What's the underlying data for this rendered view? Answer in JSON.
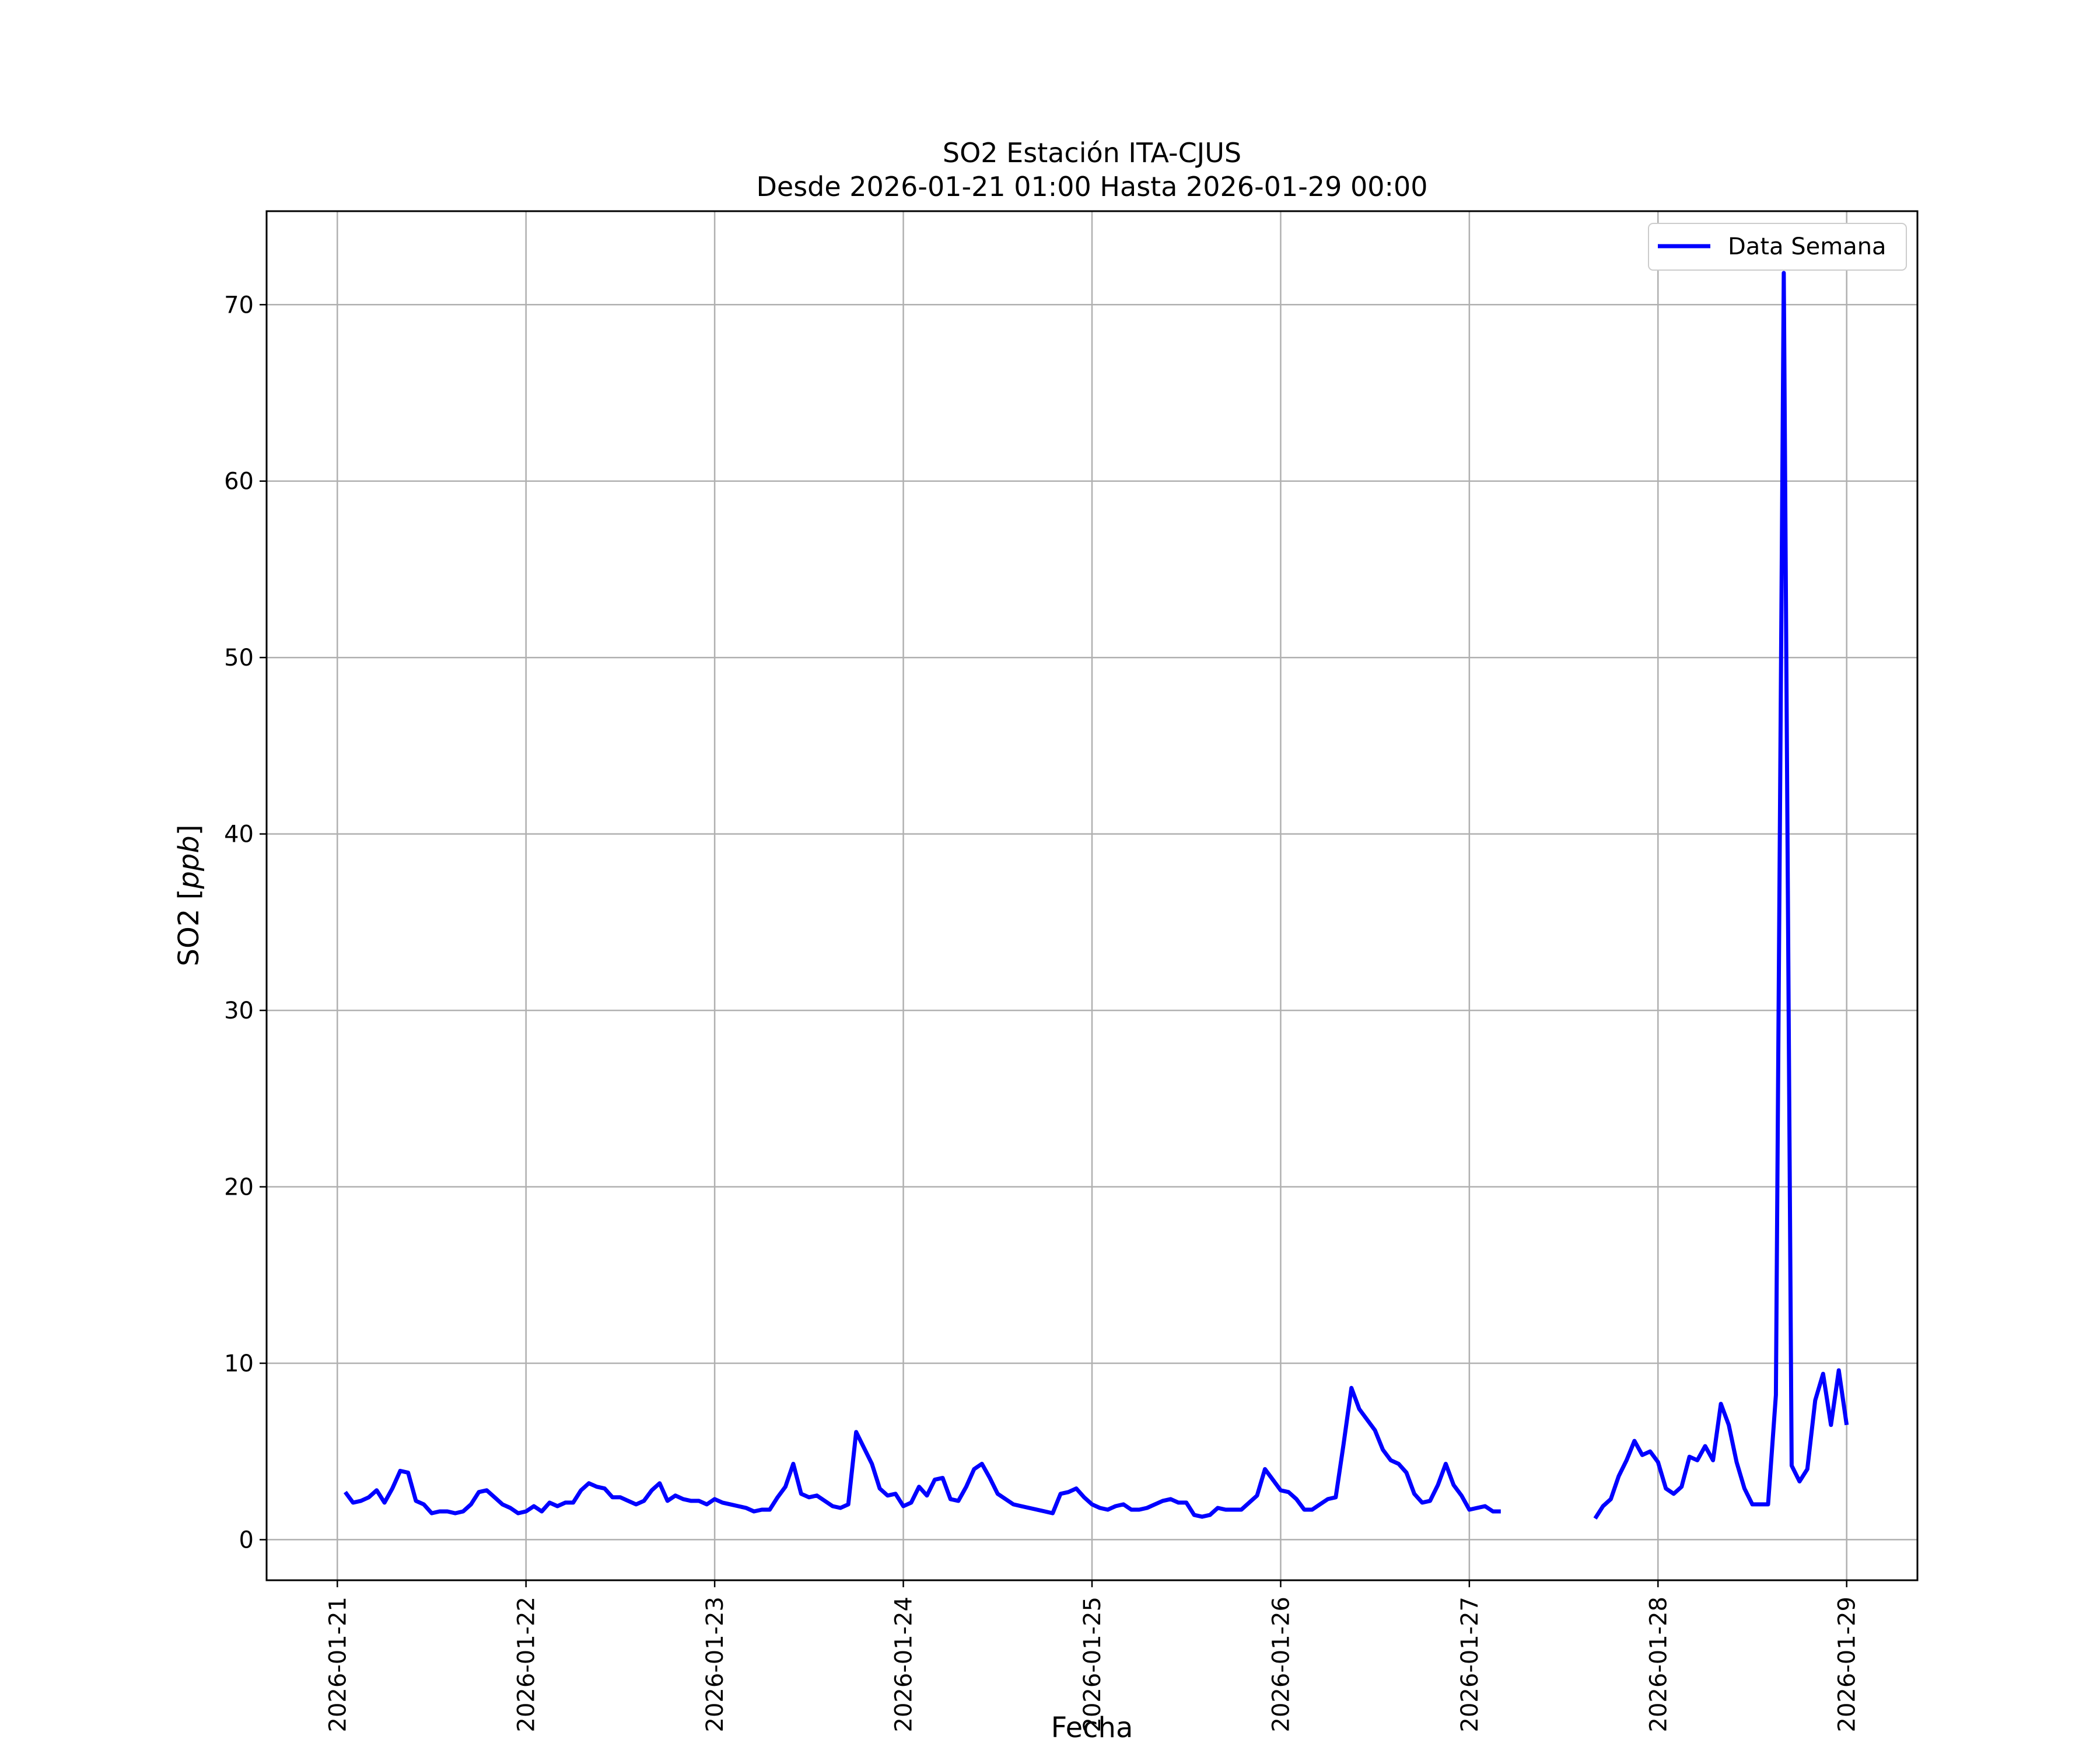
{
  "chart_data": {
    "type": "line",
    "title": "SO2 Estación ITA-CJUS",
    "subtitle": "Desde 2026-01-21 01:00 Hasta 2026-01-29 00:00",
    "xlabel": "Fecha",
    "ylabel": "SO2 [ppb]",
    "xlim": [
      "2026-01-20 15:00",
      "2026-01-29 09:00"
    ],
    "ylim": [
      -2.3,
      75.3
    ],
    "x_ticks": [
      "2026-01-21",
      "2026-01-22",
      "2026-01-23",
      "2026-01-24",
      "2026-01-25",
      "2026-01-26",
      "2026-01-27",
      "2026-01-28",
      "2026-01-29"
    ],
    "y_ticks": [
      0,
      10,
      20,
      30,
      40,
      50,
      60,
      70
    ],
    "grid": true,
    "legend_position": "top-right",
    "colors": {
      "series": "#0000ff",
      "grid": "#b0b0b0",
      "axes": "#000000"
    },
    "series": [
      {
        "name": "Data Semana",
        "segments": [
          {
            "start": "2026-01-21 01:00",
            "step_hours": 1,
            "values": [
              2.7,
              2.1,
              2.2,
              2.4,
              2.8,
              2.1,
              2.9,
              3.9,
              3.8,
              2.2,
              2.0,
              1.5,
              1.6,
              1.6,
              1.5,
              1.6,
              2.0,
              2.7,
              2.8,
              2.4,
              2.0,
              1.8,
              1.5,
              1.6,
              1.9,
              1.6,
              2.1,
              1.9,
              2.1,
              2.1,
              2.8,
              3.2,
              3.0,
              2.9,
              2.4,
              2.4,
              2.2,
              2.0,
              2.2,
              2.8,
              3.2,
              2.2,
              2.5,
              2.3,
              2.2,
              2.2,
              2.0,
              2.3,
              2.1,
              2.0,
              1.9,
              1.8,
              1.6,
              1.7,
              1.7,
              2.4,
              3.0,
              4.3,
              2.6,
              2.4,
              2.5,
              2.2,
              1.9,
              1.8,
              2.0,
              6.1,
              5.2,
              4.3,
              2.9,
              2.5,
              2.6,
              1.9,
              2.1,
              3.0,
              2.5,
              3.4,
              3.5,
              2.3,
              2.2,
              3.0,
              4.0,
              4.3,
              3.5,
              2.6,
              2.3,
              2.0,
              1.9,
              1.8,
              1.7,
              1.6,
              1.5,
              2.6,
              2.7,
              2.9,
              2.4,
              2.0,
              1.8,
              1.7,
              1.9,
              2.0,
              1.7,
              1.7,
              1.8,
              2.0,
              2.2,
              2.3,
              2.1,
              2.1,
              1.4,
              1.3,
              1.4,
              1.8,
              1.7,
              1.7,
              1.7,
              2.1,
              2.5,
              4.0,
              3.4,
              2.8,
              2.7,
              2.3,
              1.7,
              1.7,
              2.0,
              2.3,
              2.4,
              5.4,
              8.6,
              7.4,
              6.8,
              6.2,
              5.1,
              4.5,
              4.3,
              3.8,
              2.6,
              2.1,
              2.2,
              3.1,
              4.3,
              3.1,
              2.5,
              1.7,
              1.8,
              1.9,
              1.6,
              1.6
            ]
          },
          {
            "start": "2026-01-27 16:00",
            "step_hours": 1,
            "values": [
              1.2,
              1.9,
              2.3,
              3.6,
              4.5,
              5.6,
              4.8,
              5.0,
              4.4,
              2.9,
              2.6,
              3.0,
              4.7,
              4.5,
              5.3,
              4.5,
              7.7,
              6.5,
              4.4,
              2.9,
              2.0,
              2.0,
              2.0,
              8.2,
              71.8,
              4.2,
              3.3,
              4.0,
              7.9,
              9.4,
              6.5,
              9.6,
              6.5
            ]
          }
        ]
      }
    ]
  }
}
